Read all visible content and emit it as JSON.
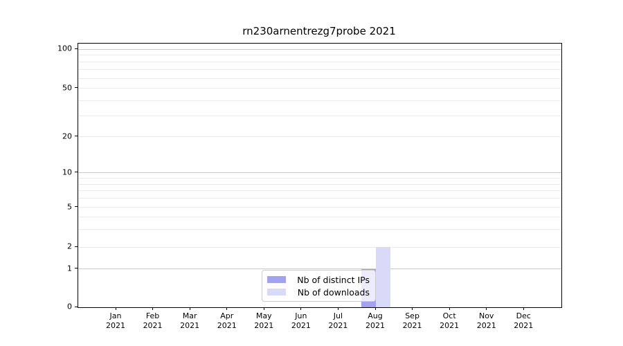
{
  "title": "rn230arnentrezg7probe 2021",
  "legend": {
    "items": [
      {
        "label": "Nb of distinct IPs",
        "color": "#a2a2ef"
      },
      {
        "label": "Nb of downloads",
        "color": "#d9d9f8"
      }
    ]
  },
  "chart_data": {
    "type": "bar",
    "title": "rn230arnentrezg7probe 2021",
    "categories": [
      "Jan",
      "Feb",
      "Mar",
      "Apr",
      "May",
      "Jun",
      "Jul",
      "Aug",
      "Sep",
      "Oct",
      "Nov",
      "Dec"
    ],
    "category_year": "2021",
    "series": [
      {
        "name": "Nb of distinct IPs",
        "color": "#a2a2ef",
        "values": [
          0,
          0,
          0,
          0,
          0,
          0,
          0,
          1,
          0,
          0,
          0,
          0
        ]
      },
      {
        "name": "Nb of downloads",
        "color": "#d9d9f8",
        "values": [
          0,
          0,
          0,
          0,
          0,
          0,
          0,
          2,
          0,
          0,
          0,
          0
        ]
      }
    ],
    "xlabel": "",
    "ylabel": "",
    "yscale": "symlog",
    "ylim": [
      0,
      110
    ],
    "yticks_labeled": [
      0,
      1,
      2,
      5,
      10,
      20,
      50,
      100
    ],
    "yticks_major_grid": [
      1,
      10,
      100
    ],
    "yticks_minor_grid": [
      2,
      3,
      4,
      5,
      6,
      7,
      8,
      9,
      20,
      30,
      40,
      50,
      60,
      70,
      80,
      90
    ],
    "scale_anchors": {
      "0": 0.0,
      "1": 0.1444,
      "2": 0.2283,
      "5": 0.378,
      "10": 0.5092,
      "20": 0.6457,
      "50": 0.8294,
      "100": 0.979
    },
    "x_layout": {
      "first_center_frac": 0.0788,
      "step_frac": 0.07675,
      "bar_width_frac": 0.0308
    },
    "grid": "horizontal",
    "legend_position": "lower center",
    "colors": {
      "major_grid": "#c9c9c9",
      "minor_grid": "#ebebeb",
      "axis": "#000000",
      "text": "#000000"
    }
  }
}
